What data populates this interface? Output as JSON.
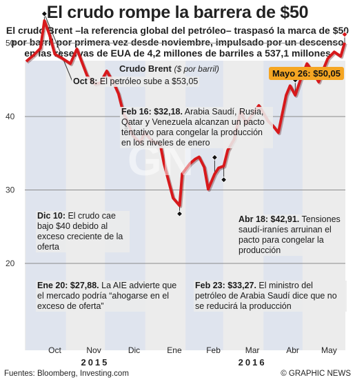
{
  "title": "El crudo rompe la barrera de $50",
  "subtitle": "El crudo Brent –la referencia global del petróleo– traspasó la marca de $50 por barril por primera vez desde noviembre, impulsado por un descenso en las reservas de EUA de 4,2 millones de barriles a 537,1 millones",
  "series_label": "Crudo Brent",
  "series_unit": "($ por barril)",
  "callout": "Mayo 26: $50,05",
  "annotations": {
    "oct8": {
      "bold": "Oct 8:",
      "text": " El petróleo sube a $53,05"
    },
    "feb16": {
      "bold": "Feb 16: $32,18.",
      "text": " Arabia Saudí, Rusia, Qatar y Venezuela alcanzan un pacto tentativo para congelar la producción en los niveles de enero"
    },
    "dic10": {
      "bold": "Dic 10:",
      "text": " El crudo cae bajo $40 debido al exceso creciente de la oferta"
    },
    "abr18": {
      "bold": "Abr 18: $42,91.",
      "text": " Tensiones saudí-iraníes arruinan el pacto para congelar la producción"
    },
    "ene20": {
      "bold": "Ene 20: $27,88.",
      "text": " La AIE advierte que el mercado podría “ahogarse en el exceso de oferta”"
    },
    "feb23": {
      "bold": "Feb 23: $33,27.",
      "text": " El ministro del petróleo de Arabia Saudí dice que no se reducirá la producción"
    }
  },
  "footer": {
    "source": "Fuentes: Bloomberg, Investing.com",
    "credit": "© GRAPHIC NEWS"
  },
  "watermark": "GN",
  "colors": {
    "line": "#d7191c",
    "shade": "#dfe4ee",
    "bg": "#ececec",
    "callout": "#f5a623"
  },
  "chart_data": {
    "type": "line",
    "title": "Crudo Brent",
    "ylabel": "($ por barril)",
    "ylim": [
      20,
      55
    ],
    "yticks": [
      20,
      30,
      40,
      50
    ],
    "month_labels": [
      "Oct",
      "Nov",
      "Dic",
      "Ene",
      "Feb",
      "Mar",
      "Abr",
      "May"
    ],
    "year_labels": [
      "2015",
      "2016"
    ],
    "series": [
      {
        "name": "Crudo Brent",
        "x": [
          "2015-09-24",
          "2015-09-30",
          "2015-10-05",
          "2015-10-08",
          "2015-10-12",
          "2015-10-16",
          "2015-10-22",
          "2015-10-28",
          "2015-11-02",
          "2015-11-05",
          "2015-11-10",
          "2015-11-16",
          "2015-11-20",
          "2015-11-25",
          "2015-12-01",
          "2015-12-04",
          "2015-12-08",
          "2015-12-10",
          "2015-12-15",
          "2015-12-21",
          "2015-12-24",
          "2015-12-30",
          "2016-01-05",
          "2016-01-08",
          "2016-01-12",
          "2016-01-15",
          "2016-01-20",
          "2016-01-22",
          "2016-01-28",
          "2016-02-01",
          "2016-02-04",
          "2016-02-08",
          "2016-02-11",
          "2016-02-16",
          "2016-02-19",
          "2016-02-23",
          "2016-02-26",
          "2016-03-02",
          "2016-03-07",
          "2016-03-11",
          "2016-03-16",
          "2016-03-21",
          "2016-03-28",
          "2016-04-01",
          "2016-04-05",
          "2016-04-11",
          "2016-04-14",
          "2016-04-18",
          "2016-04-22",
          "2016-04-27",
          "2016-05-02",
          "2016-05-06",
          "2016-05-10",
          "2016-05-13",
          "2016-05-18",
          "2016-05-23",
          "2016-05-26"
        ],
        "values": [
          47.5,
          48.4,
          49.3,
          53.05,
          51.1,
          48.5,
          47.9,
          47.2,
          49.2,
          47.8,
          45.5,
          44.4,
          44.6,
          46.2,
          44.3,
          43.1,
          40.3,
          39.7,
          37.4,
          36.4,
          37.9,
          36.6,
          36.3,
          33.6,
          30.9,
          28.9,
          27.88,
          32.2,
          33.6,
          34.2,
          34.5,
          33.1,
          30.1,
          32.18,
          33.0,
          33.27,
          35.4,
          36.9,
          40.8,
          39.0,
          40.3,
          41.5,
          39.4,
          38.7,
          37.8,
          42.9,
          44.2,
          42.91,
          45.0,
          47.2,
          45.9,
          44.7,
          46.6,
          47.9,
          48.8,
          48.2,
          50.05
        ]
      }
    ],
    "annotations": [
      {
        "x": "2015-10-08",
        "y": 53.05,
        "label": "Oct 8"
      },
      {
        "x": "2015-12-10",
        "y": 39.7,
        "label": "Dic 10"
      },
      {
        "x": "2016-01-20",
        "y": 27.88,
        "label": "Ene 20"
      },
      {
        "x": "2016-02-16",
        "y": 32.18,
        "label": "Feb 16"
      },
      {
        "x": "2016-02-23",
        "y": 33.27,
        "label": "Feb 23"
      },
      {
        "x": "2016-04-18",
        "y": 42.91,
        "label": "Abr 18"
      },
      {
        "x": "2016-05-26",
        "y": 50.05,
        "label": "Mayo 26"
      }
    ]
  }
}
